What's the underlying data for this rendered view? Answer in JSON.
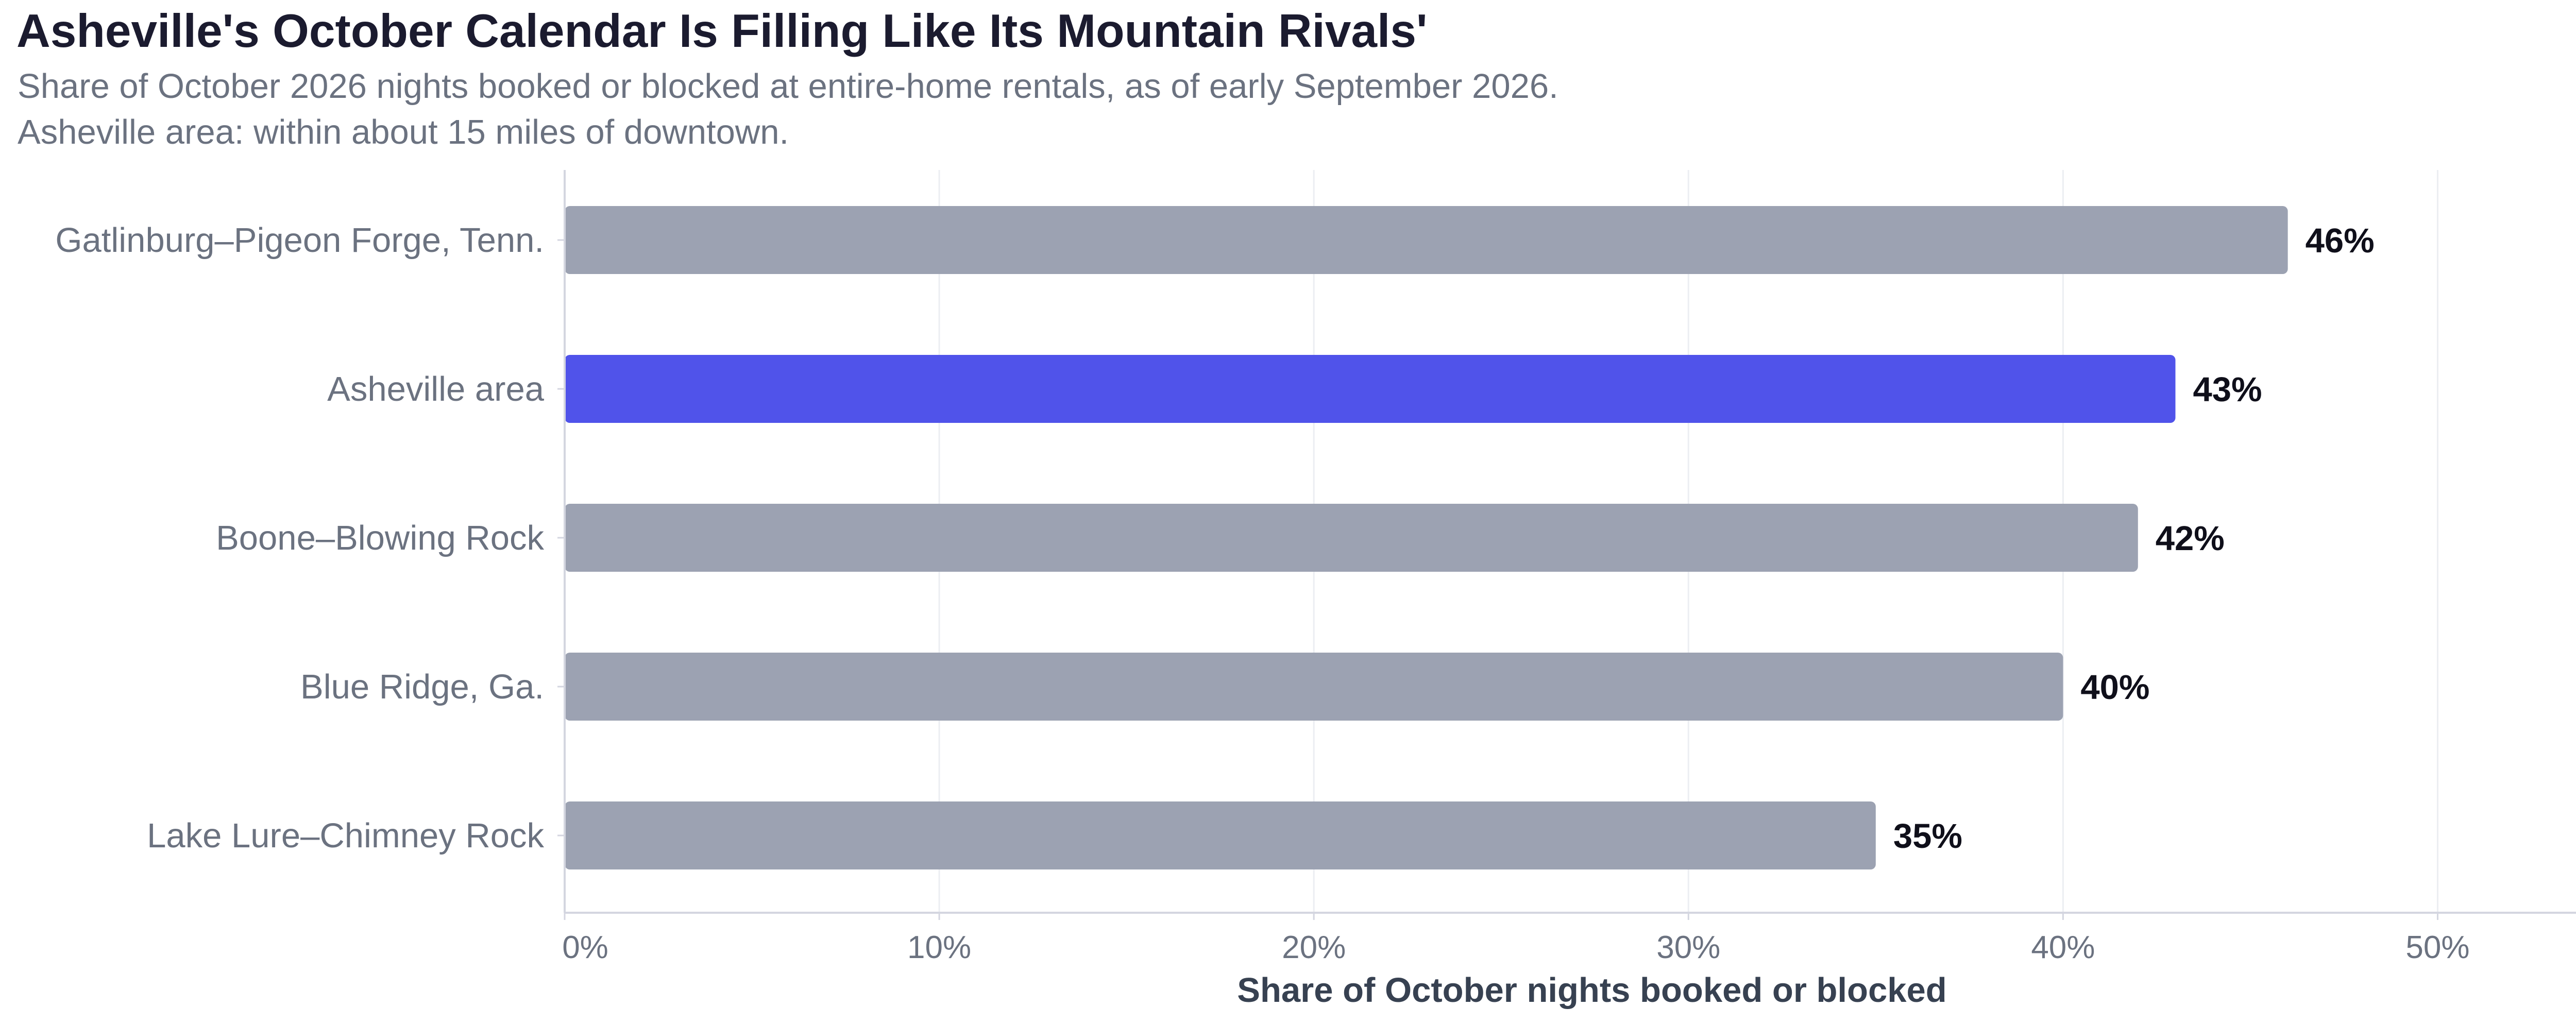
{
  "chart_data": {
    "type": "bar",
    "orientation": "horizontal",
    "title": "Asheville's October Calendar Is Filling Like Its Mountain Rivals'",
    "subtitle_lines": [
      "Share of October 2026 nights booked or blocked at entire-home rentals, as of early September 2026.",
      "Asheville area: within about 15 miles of downtown."
    ],
    "xlabel": "Share of October nights booked or blocked",
    "ylabel": "",
    "categories": [
      "Gatlinburg–Pigeon Forge, Tenn.",
      "Asheville area",
      "Boone–Blowing Rock",
      "Blue Ridge, Ga.",
      "Lake Lure–Chimney Rock"
    ],
    "values": [
      46,
      43,
      42,
      40,
      35
    ],
    "value_labels": [
      "46%",
      "43%",
      "42%",
      "40%",
      "35%"
    ],
    "highlight_category": "Asheville area",
    "xlim": [
      0,
      55
    ],
    "x_ticks": [
      0,
      10,
      20,
      30,
      40,
      50
    ],
    "x_tick_labels": [
      "0%",
      "10%",
      "20%",
      "30%",
      "40%",
      "50%"
    ],
    "grid": "vertical",
    "legend": "none",
    "colors": {
      "highlight": "#5053ea",
      "base": "#9ca2b2",
      "title": "#1b1b2f",
      "subtitle": "#6b7280",
      "value_label": "#0f0f1a",
      "axis_label": "#374151",
      "tick_label": "#6b7280",
      "category_label": "#6b7280",
      "gridline": "#eceef2",
      "axis_line": "#d4d6e0"
    }
  }
}
